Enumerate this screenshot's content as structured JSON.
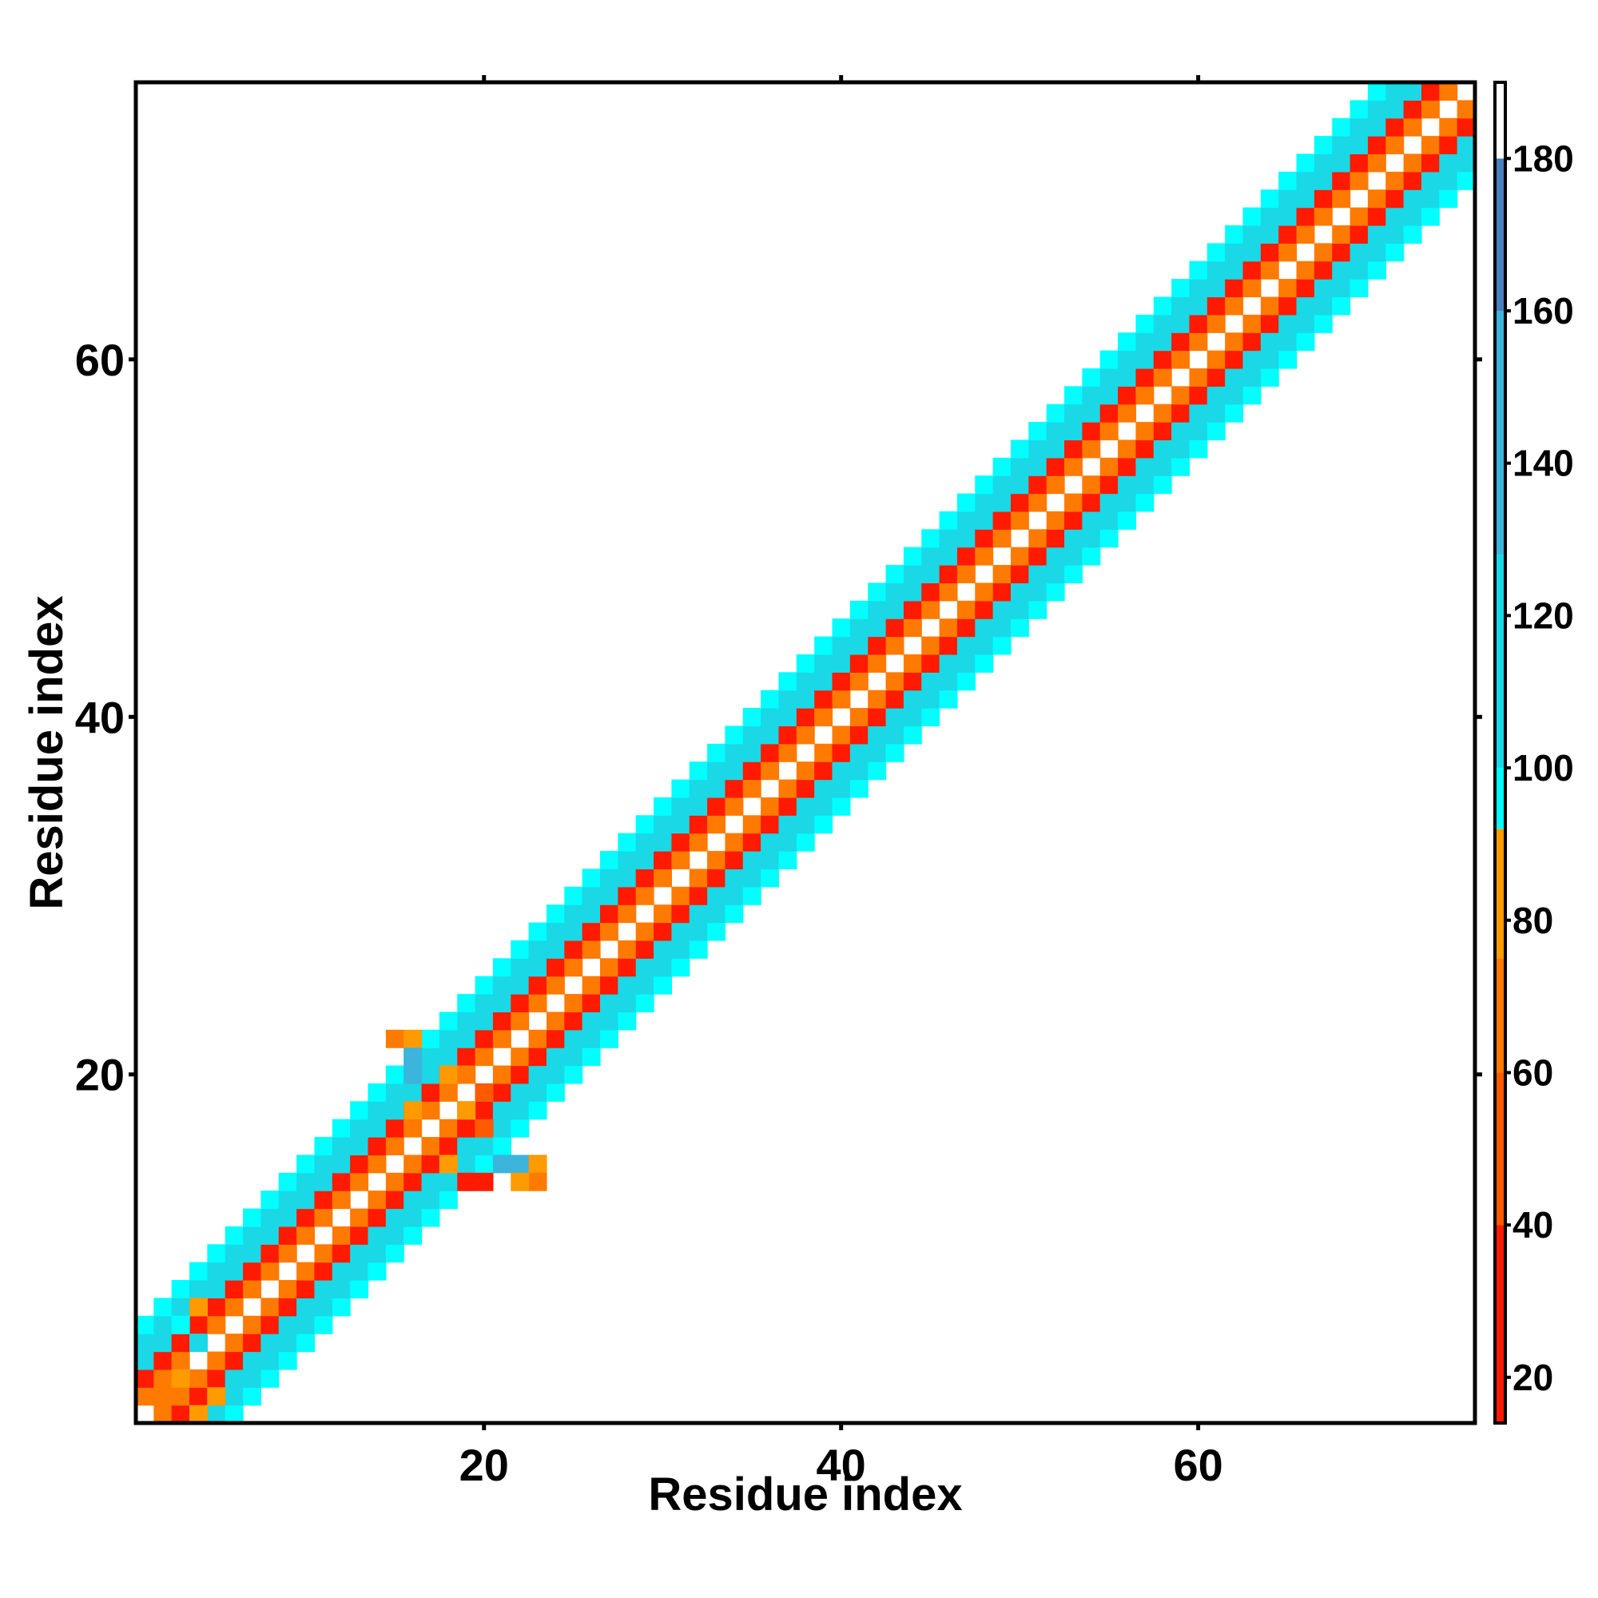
{
  "chart_data": {
    "type": "heatmap",
    "title": "",
    "xlabel": "Residue index",
    "ylabel": "Residue index",
    "xlim": [
      1,
      75
    ],
    "ylim": [
      1,
      75
    ],
    "x_ticks": [
      20,
      40,
      60
    ],
    "y_ticks": [
      20,
      40,
      60
    ],
    "grid": false,
    "colorbar": {
      "position": "right",
      "range": [
        14,
        190
      ],
      "ticks": [
        20,
        40,
        60,
        80,
        100,
        120,
        140,
        160,
        180
      ],
      "bins": [
        {
          "from": 14,
          "to": 40,
          "color": "#ff1a00"
        },
        {
          "from": 40,
          "to": 60,
          "color": "#ff5a00"
        },
        {
          "from": 60,
          "to": 75,
          "color": "#ff7a00"
        },
        {
          "from": 75,
          "to": 92,
          "color": "#ff9a00"
        },
        {
          "from": 92,
          "to": 100,
          "color": "#00ffff"
        },
        {
          "from": 100,
          "to": 128,
          "color": "#1ad8e6"
        },
        {
          "from": 128,
          "to": 160,
          "color": "#3cb4dc"
        },
        {
          "from": 160,
          "to": 180,
          "color": "#4a7fc0"
        },
        {
          "from": 180,
          "to": 190,
          "color": "#ffffff"
        }
      ]
    },
    "matrix_description": "Symmetric residue-pair map; diagonal band of width ~5 with values by offset |i-j|: 1 -> ~75, 2 -> ~30, 3 -> ~110, 4 -> ~120, 5 -> ~96; diagonal itself blank",
    "band_offsets": [
      {
        "offset": 0,
        "value": null
      },
      {
        "offset": 1,
        "value": 75
      },
      {
        "offset": 2,
        "value": 30
      },
      {
        "offset": 3,
        "value": 110
      },
      {
        "offset": 4,
        "value": 120
      },
      {
        "offset": 5,
        "value": 96
      }
    ],
    "extra_cells": [
      {
        "x": 15,
        "y": 22,
        "value": 70
      },
      {
        "x": 16,
        "y": 22,
        "value": 85
      },
      {
        "x": 16,
        "y": 21,
        "value": 140
      },
      {
        "x": 16,
        "y": 20,
        "value": 135
      },
      {
        "x": 16,
        "y": 18,
        "value": 85
      },
      {
        "x": 18,
        "y": 20,
        "value": 85
      },
      {
        "x": 19,
        "y": 20,
        "value": 70
      },
      {
        "x": 20,
        "y": 19,
        "value": 60
      },
      {
        "x": 19,
        "y": 18,
        "value": 85
      },
      {
        "x": 20,
        "y": 17,
        "value": 60
      },
      {
        "x": 18,
        "y": 15,
        "value": 85
      },
      {
        "x": 19,
        "y": 14,
        "value": 35
      },
      {
        "x": 20,
        "y": 14,
        "value": 35
      },
      {
        "x": 21,
        "y": 15,
        "value": 140
      },
      {
        "x": 22,
        "y": 15,
        "value": 140
      },
      {
        "x": 23,
        "y": 15,
        "value": 80
      },
      {
        "x": 23,
        "y": 14,
        "value": 70
      },
      {
        "x": 22,
        "y": 14,
        "value": 80
      },
      {
        "x": 3,
        "y": 3,
        "value": 80
      },
      {
        "x": 2,
        "y": 2,
        "value": 70
      },
      {
        "x": 4,
        "y": 1,
        "value": 85
      },
      {
        "x": 5,
        "y": 2,
        "value": 80
      },
      {
        "x": 4,
        "y": 7,
        "value": 80
      },
      {
        "x": 3,
        "y": 6,
        "value": 100
      },
      {
        "x": 4,
        "y": 5,
        "value": 110
      }
    ]
  }
}
